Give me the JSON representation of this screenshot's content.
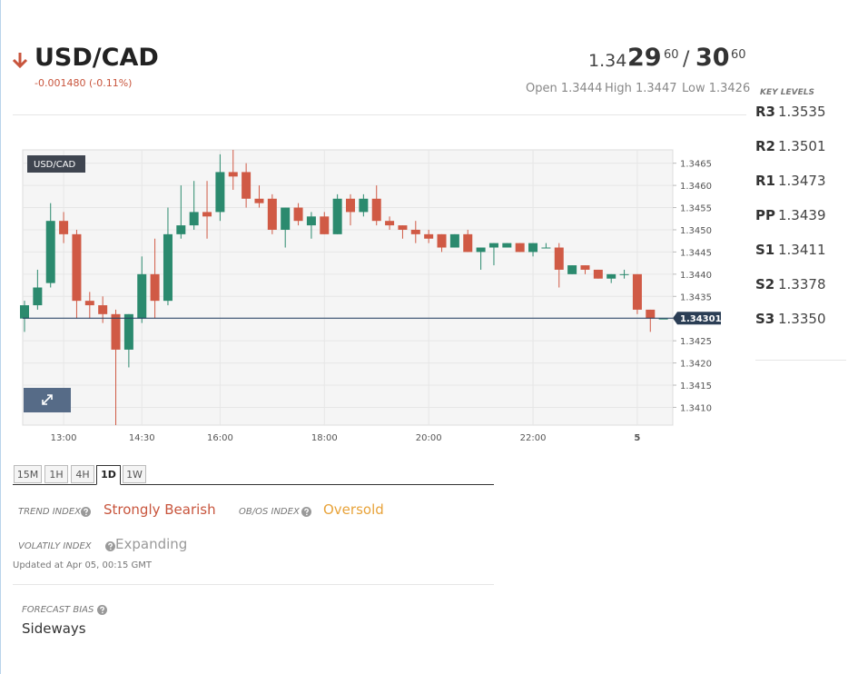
{
  "header": {
    "symbol": "USD/CAD",
    "change": "-0.001480 (-0.11%)",
    "bid_big": "1.34",
    "bid_pips": "29",
    "bid_frac": "60",
    "separator": "/",
    "ask_pips": "30",
    "ask_frac": "60",
    "open": "Open 1.3444",
    "high": "High 1.3447",
    "low": "Low 1.3426"
  },
  "key_levels": {
    "title": "KEY LEVELS",
    "items": [
      {
        "label": "R3",
        "value": "1.3535"
      },
      {
        "label": "R2",
        "value": "1.3501"
      },
      {
        "label": "R1",
        "value": "1.3473"
      },
      {
        "label": "PP",
        "value": "1.3439"
      },
      {
        "label": "S1",
        "value": "1.3411"
      },
      {
        "label": "S2",
        "value": "1.3378"
      },
      {
        "label": "S3",
        "value": "1.3350"
      }
    ]
  },
  "timeframes": {
    "items": [
      "15M",
      "1H",
      "4H",
      "1D",
      "1W"
    ],
    "active": "1D"
  },
  "indicators": {
    "trend_label": "TREND INDEX",
    "trend_value": "Strongly Bearish",
    "obos_label": "OB/OS INDEX",
    "obos_value": "Oversold",
    "volatility_label": "VOLATILY INDEX",
    "volatility_value": "Expanding",
    "updated": "Updated at Apr 05, 00:15 GMT",
    "forecast_label": "FORECAST BIAS",
    "forecast_value": "Sideways"
  },
  "chart_data": {
    "type": "candlestick",
    "title": "USD/CAD",
    "up_color": "#2b8a6e",
    "down_color": "#d05a45",
    "categories": [
      null,
      null,
      null,
      "13:00",
      null,
      null,
      null,
      null,
      null,
      "14:30",
      null,
      null,
      null,
      null,
      null,
      "16:00",
      null,
      null,
      null,
      null,
      null,
      null,
      null,
      "18:00",
      null,
      null,
      null,
      null,
      null,
      null,
      null,
      "20:00",
      null,
      null,
      null,
      null,
      null,
      null,
      null,
      "22:00",
      null,
      null,
      null,
      null,
      null,
      null,
      null,
      "5",
      null,
      null
    ],
    "open": [
      1.343,
      1.3433,
      1.3438,
      1.3452,
      1.3449,
      1.3434,
      1.3433,
      1.3431,
      1.3423,
      1.343,
      1.344,
      1.3434,
      1.3449,
      1.3451,
      1.3454,
      1.3454,
      1.3463,
      1.3463,
      1.3457,
      1.3457,
      1.345,
      1.3455,
      1.3451,
      1.3453,
      1.3449,
      1.3457,
      1.3454,
      1.3457,
      1.3452,
      1.3451,
      1.345,
      1.3449,
      1.3449,
      1.3446,
      1.3449,
      1.3445,
      1.3446,
      1.3446,
      1.3447,
      1.3445,
      1.3446,
      1.3446,
      1.344,
      1.3442,
      1.3441,
      1.3439,
      1.344,
      1.344,
      1.3432,
      1.343
    ],
    "high": [
      1.3434,
      1.3441,
      1.3456,
      1.3454,
      1.345,
      1.3436,
      1.3435,
      1.3432,
      1.3431,
      1.3444,
      1.3448,
      1.3455,
      1.346,
      1.3461,
      1.3461,
      1.3467,
      1.3468,
      1.3465,
      1.346,
      1.3458,
      1.3455,
      1.3456,
      1.3454,
      1.3454,
      1.3458,
      1.3458,
      1.3458,
      1.346,
      1.3453,
      1.3451,
      1.3452,
      1.345,
      1.3449,
      1.3449,
      1.345,
      1.3446,
      1.3447,
      1.3447,
      1.3447,
      1.3447,
      1.3447,
      1.3447,
      1.3442,
      1.3442,
      1.3441,
      1.344,
      1.3441,
      1.344,
      1.3432,
      1.343
    ],
    "low": [
      1.3427,
      1.3432,
      1.3437,
      1.3447,
      1.343,
      1.343,
      1.3429,
      1.3406,
      1.3419,
      1.3429,
      1.343,
      1.3433,
      1.3448,
      1.345,
      1.3448,
      1.3452,
      1.3459,
      1.3455,
      1.3455,
      1.3449,
      1.3446,
      1.3451,
      1.3448,
      1.3449,
      1.3449,
      1.3451,
      1.3453,
      1.3451,
      1.345,
      1.3448,
      1.3447,
      1.3447,
      1.3445,
      1.3446,
      1.3445,
      1.3441,
      1.3442,
      1.3446,
      1.3445,
      1.3444,
      1.3446,
      1.3437,
      1.344,
      1.344,
      1.3439,
      1.3438,
      1.3439,
      1.3431,
      1.3427,
      1.343
    ],
    "close": [
      1.3433,
      1.3437,
      1.3452,
      1.3449,
      1.3434,
      1.3433,
      1.3431,
      1.3423,
      1.3431,
      1.344,
      1.3434,
      1.3449,
      1.3451,
      1.3454,
      1.3453,
      1.3463,
      1.3462,
      1.3457,
      1.3456,
      1.345,
      1.3455,
      1.3452,
      1.3453,
      1.3449,
      1.3457,
      1.3454,
      1.3457,
      1.3452,
      1.3451,
      1.345,
      1.3449,
      1.3448,
      1.3446,
      1.3449,
      1.3445,
      1.3446,
      1.3447,
      1.3447,
      1.3445,
      1.3447,
      1.3446,
      1.3441,
      1.3442,
      1.3441,
      1.3439,
      1.344,
      1.344,
      1.3432,
      1.343,
      1.343
    ],
    "last_price": 1.34301,
    "ylim": [
      1.3406,
      1.3468
    ],
    "yticks": [
      {
        "value": 1.341,
        "label": "1.3410"
      },
      1.3415,
      {
        "value": 1.342,
        "label": "1.3420"
      },
      1.3425,
      {
        "value": 1.343,
        "label": "1.3430"
      },
      1.3435,
      {
        "value": 1.344,
        "label": "1.3440"
      },
      1.3445,
      {
        "value": 1.345,
        "label": "1.3450"
      },
      1.3455,
      {
        "value": 1.346,
        "label": "1.3460"
      },
      1.3465
    ],
    "grid": true
  }
}
